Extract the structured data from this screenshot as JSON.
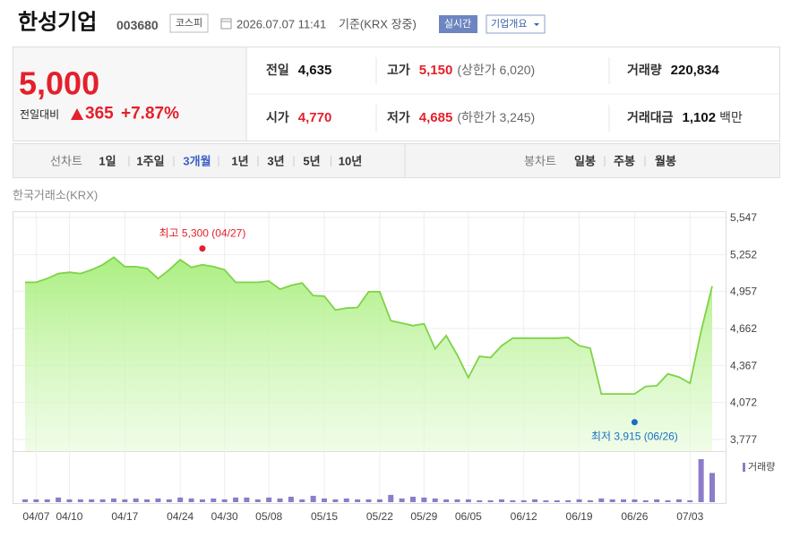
{
  "header": {
    "name": "한성기업",
    "code": "003680",
    "market": "코스피",
    "datetime": "2026.07.07 11:41",
    "basis": "기준(KRX 장중)",
    "realtime": "실시간",
    "overview": "기업개요"
  },
  "quote": {
    "price": "5,000",
    "change_label": "전일대비",
    "change": "365",
    "change_rate": "+7.87%",
    "stats": [
      {
        "label": "전일",
        "value": "4,635"
      },
      {
        "label": "고가",
        "value": "5,150",
        "extra": "(상한가 6,020)",
        "color": "#e4202b"
      },
      {
        "label": "거래량",
        "value": "220,834"
      },
      {
        "label": "시가",
        "value": "4,770",
        "color": "#e4202b"
      },
      {
        "label": "저가",
        "value": "4,685",
        "extra": "(하한가 3,245)",
        "color": "#e4202b"
      },
      {
        "label": "거래대금",
        "value": "1,102",
        "unit": "백만"
      }
    ]
  },
  "tabs": {
    "line_label": "선차트",
    "periods": [
      "1일",
      "1주일",
      "3개월",
      "1년",
      "3년",
      "5년",
      "10년"
    ],
    "selected": 2,
    "candle_label": "봉차트",
    "candles": [
      "일봉",
      "주봉",
      "월봉"
    ]
  },
  "chart_data": [
    {
      "type": "line",
      "source": "한국거래소(KRX)",
      "categories": [
        null,
        "04/07",
        null,
        null,
        "04/10",
        null,
        null,
        null,
        null,
        "04/17",
        null,
        null,
        null,
        null,
        "04/24",
        null,
        null,
        null,
        "04/30",
        null,
        null,
        null,
        "05/08",
        null,
        null,
        null,
        null,
        "05/15",
        null,
        null,
        null,
        null,
        "05/22",
        null,
        null,
        null,
        "05/29",
        null,
        null,
        null,
        "06/05",
        null,
        null,
        null,
        null,
        "06/12",
        null,
        null,
        null,
        null,
        "06/19",
        null,
        null,
        null,
        null,
        "06/26",
        null,
        null,
        null,
        null,
        "07/03",
        null,
        null
      ],
      "series": [
        {
          "color": "#7ed348",
          "values": [
            5030,
            5030,
            5060,
            5100,
            5110,
            5100,
            5130,
            5170,
            5230,
            5155,
            5155,
            5140,
            5060,
            5130,
            5210,
            5150,
            5170,
            5155,
            5130,
            5030,
            5030,
            5030,
            5040,
            4975,
            5005,
            5025,
            4925,
            4920,
            4810,
            4825,
            4830,
            4955,
            4955,
            4725,
            4705,
            4685,
            4700,
            4500,
            4605,
            4450,
            4270,
            4440,
            4430,
            4525,
            4585,
            4585,
            4585,
            4585,
            4585,
            4590,
            4525,
            4505,
            4140,
            4140,
            4140,
            4140,
            4200,
            4205,
            4300,
            4275,
            4225,
            4640,
            5000
          ]
        }
      ],
      "ylim": [
        3777,
        5547
      ],
      "yticks": [
        {
          "value": 5547,
          "label": "5,547"
        },
        {
          "value": 5252,
          "label": "5,252"
        },
        {
          "value": 4957,
          "label": "4,957"
        },
        {
          "value": 4662,
          "label": "4,662"
        },
        {
          "value": 4367,
          "label": "4,367"
        },
        {
          "value": 4072,
          "label": "4,072"
        },
        {
          "value": 3777,
          "label": "3,777"
        }
      ],
      "grid": true,
      "annotations": [
        {
          "text": "최고 5,300 (04/27)",
          "value": 5300,
          "color": "#e4202b",
          "position": "above"
        },
        {
          "text": "최저 3,915 (06/26)",
          "value": 3915,
          "color": "#1a6fc4",
          "position": "below"
        }
      ]
    },
    {
      "type": "bar",
      "series": [
        {
          "name": "거래량",
          "color": "#8c7cc9",
          "values": [
            21000,
            21000,
            21000,
            35000,
            21000,
            21000,
            21000,
            21000,
            28000,
            21000,
            28000,
            21000,
            28000,
            21000,
            35000,
            28000,
            21000,
            28000,
            21000,
            35000,
            35000,
            21000,
            35000,
            28000,
            41000,
            21000,
            48000,
            28000,
            21000,
            28000,
            21000,
            21000,
            21000,
            55000,
            28000,
            41000,
            35000,
            28000,
            21000,
            21000,
            21000,
            14000,
            14000,
            21000,
            14000,
            14000,
            21000,
            14000,
            14000,
            14000,
            21000,
            14000,
            28000,
            21000,
            21000,
            21000,
            14000,
            21000,
            14000,
            21000,
            14000,
            325000,
            220834
          ]
        }
      ]
    }
  ]
}
